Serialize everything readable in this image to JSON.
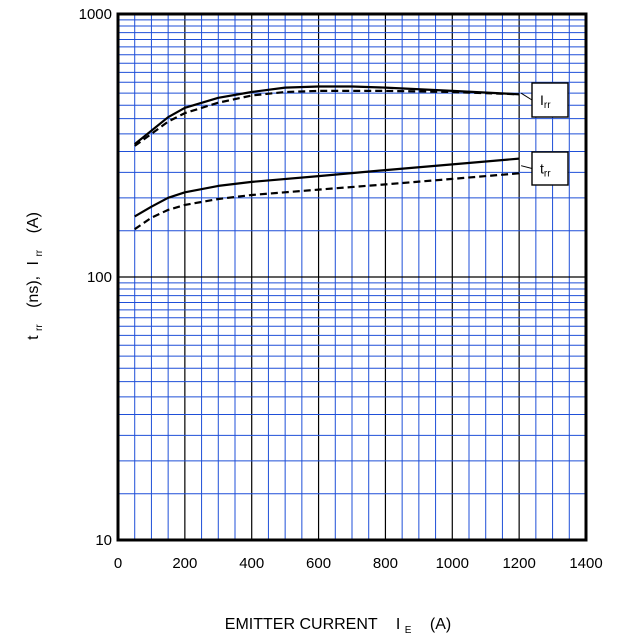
{
  "chart_data": {
    "type": "line",
    "x_scale": "linear",
    "y_scale": "log",
    "xlim": [
      0,
      1400
    ],
    "ylim": [
      10,
      1000
    ],
    "x_ticks": [
      0,
      200,
      400,
      600,
      800,
      1000,
      1200,
      1400
    ],
    "y_ticks": [
      10,
      100,
      1000
    ],
    "x_tick_labels": [
      "0",
      "200",
      "400",
      "600",
      "800",
      "1000",
      "1200",
      "1400"
    ],
    "y_tick_labels": [
      "10",
      "100",
      "1000"
    ],
    "xlabel": {
      "main": "EMITTER CURRENT",
      "symbol": "I",
      "symbol_sub": "E",
      "unit": "(A)"
    },
    "ylabel": {
      "sym1": "t",
      "sub1": "rr",
      "unit1": "(ns),",
      "sym2": "I",
      "sub2": "rr",
      "unit2": "(A)"
    },
    "grid": true,
    "colors": {
      "minor_grid": "#1f4fd8",
      "major_grid": "#000000",
      "line": "#000000"
    },
    "series": [
      {
        "name": "",
        "style": "solid",
        "x": [
          50,
          100,
          150,
          200,
          300,
          400,
          500,
          600,
          700,
          800,
          1000,
          1200
        ],
        "y": [
          320,
          360,
          405,
          440,
          480,
          505,
          525,
          530,
          530,
          525,
          510,
          495
        ]
      },
      {
        "name": "",
        "style": "dashed",
        "x": [
          50,
          100,
          150,
          200,
          300,
          400,
          500,
          600,
          700,
          800,
          1000,
          1200
        ],
        "y": [
          315,
          350,
          390,
          420,
          460,
          490,
          505,
          510,
          510,
          510,
          505,
          495
        ]
      },
      {
        "name": "",
        "style": "solid",
        "x": [
          50,
          100,
          150,
          200,
          300,
          400,
          600,
          800,
          1000,
          1200
        ],
        "y": [
          170,
          185,
          200,
          210,
          222,
          230,
          242,
          255,
          268,
          282
        ]
      },
      {
        "name": "",
        "style": "dashed",
        "x": [
          50,
          100,
          150,
          200,
          300,
          400,
          600,
          800,
          1000,
          1200
        ],
        "y": [
          152,
          168,
          180,
          188,
          198,
          205,
          215,
          225,
          236,
          248
        ]
      }
    ],
    "annotations": [
      {
        "sym": "I",
        "sub": "rr",
        "points_to_y": 500
      },
      {
        "sym": "t",
        "sub": "rr",
        "points_to_y": 265
      }
    ]
  }
}
